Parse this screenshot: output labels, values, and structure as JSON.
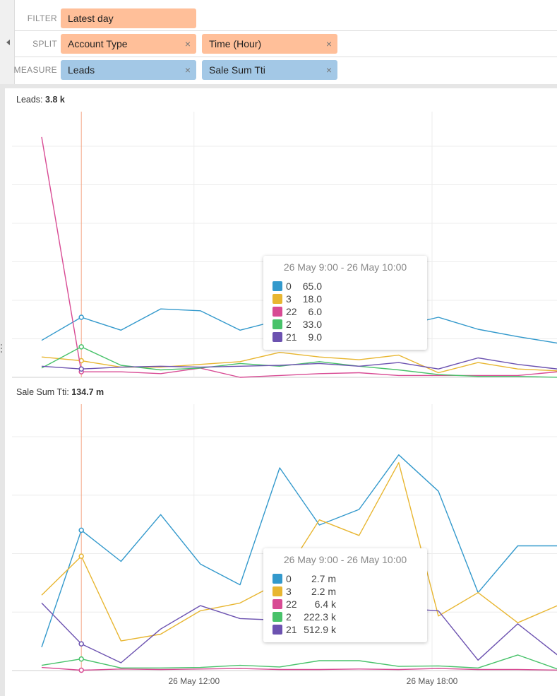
{
  "filter_bar": {
    "rows": [
      {
        "label": "FILTER",
        "tiles": [
          {
            "text": "Latest day",
            "removable": false
          }
        ]
      },
      {
        "label": "SPLIT",
        "tiles": [
          {
            "text": "Account Type",
            "removable": true
          },
          {
            "text": "Time (Hour)",
            "removable": true
          }
        ]
      },
      {
        "label": "MEASURE",
        "tiles": [
          {
            "text": "Leads",
            "removable": true
          },
          {
            "text": "Sale Sum Tti",
            "removable": true
          }
        ]
      }
    ],
    "remove_glyph": "×",
    "colors": {
      "split_tile": "#ffbf99",
      "measure_tile": "#a3c8e6"
    }
  },
  "colors": {
    "0": "#3399cc",
    "3": "#e8b631",
    "22": "#d84b94",
    "2": "#48c26a",
    "21": "#6c52b0",
    "hover_line": "#f5a888"
  },
  "charts": [
    {
      "title_label": "Leads:",
      "title_value": "3.8 k",
      "tooltip": {
        "title": "26 May 9:00 - 26 May 10:00",
        "rows": [
          {
            "segment": "0",
            "value": "65.0"
          },
          {
            "segment": "3",
            "value": "18.0"
          },
          {
            "segment": "22",
            "value": "6.0"
          },
          {
            "segment": "2",
            "value": "33.0"
          },
          {
            "segment": "21",
            "value": "9.0"
          }
        ]
      }
    },
    {
      "title_label": "Sale Sum Tti:",
      "title_value": "134.7 m",
      "tooltip": {
        "title": "26 May 9:00 - 26 May 10:00",
        "rows": [
          {
            "segment": "0",
            "value": "2.7 m"
          },
          {
            "segment": "3",
            "value": "2.2 m"
          },
          {
            "segment": "22",
            "value": "6.4 k"
          },
          {
            "segment": "2",
            "value": "222.3 k"
          },
          {
            "segment": "21",
            "value": "512.9 k"
          }
        ]
      }
    }
  ],
  "x_axis": {
    "ticks": [
      "26 May 12:00",
      "26 May 18:00"
    ]
  },
  "chart_data": [
    {
      "type": "line",
      "title": "Leads: 3.8 k",
      "x": [
        "8:00",
        "9:00",
        "10:00",
        "11:00",
        "12:00",
        "13:00",
        "14:00",
        "15:00",
        "16:00",
        "17:00",
        "18:00",
        "19:00",
        "20:00",
        "21:00",
        "22:00"
      ],
      "ylim": [
        0,
        250
      ],
      "grid": true,
      "hover_x": "9:00",
      "series": [
        {
          "name": "0",
          "values": [
            40,
            65,
            51,
            74,
            72,
            51,
            62,
            72,
            63,
            55,
            65,
            52,
            44,
            37,
            null
          ]
        },
        {
          "name": "3",
          "values": [
            22,
            18,
            11,
            11,
            14,
            17,
            27,
            22,
            19,
            24,
            5,
            16,
            9,
            7,
            null
          ]
        },
        {
          "name": "22",
          "values": [
            260,
            6,
            6,
            4,
            10,
            0,
            2,
            4,
            5,
            2,
            2,
            2,
            2,
            6,
            null
          ]
        },
        {
          "name": "2",
          "values": [
            10,
            33,
            13,
            8,
            10,
            15,
            12,
            17,
            12,
            8,
            3,
            1,
            1,
            0,
            null
          ]
        },
        {
          "name": "21",
          "values": [
            12,
            9,
            11,
            12,
            11,
            12,
            13,
            15,
            12,
            16,
            9,
            21,
            14,
            9,
            null
          ]
        }
      ]
    },
    {
      "type": "line",
      "title": "Sale Sum Tti: 134.7 m",
      "x": [
        "8:00",
        "9:00",
        "10:00",
        "11:00",
        "12:00",
        "13:00",
        "14:00",
        "15:00",
        "16:00",
        "17:00",
        "18:00",
        "19:00",
        "20:00",
        "21:00",
        "22:00"
      ],
      "ylim": [
        0,
        4.5
      ],
      "grid": true,
      "hover_x": "9:00",
      "series": [
        {
          "name": "0",
          "values": [
            0.45,
            2.7,
            2.1,
            3.0,
            2.05,
            1.65,
            3.9,
            2.8,
            3.1,
            4.15,
            3.45,
            1.5,
            2.4,
            2.4,
            null
          ]
        },
        {
          "name": "3",
          "values": [
            1.45,
            2.2,
            0.57,
            0.7,
            1.15,
            1.3,
            1.7,
            2.9,
            2.6,
            4.0,
            1.05,
            1.5,
            0.92,
            1.25,
            null
          ]
        },
        {
          "name": "22",
          "values": [
            0.06,
            0.0064,
            0.03,
            0.02,
            0.03,
            0.04,
            0.02,
            0.02,
            0.03,
            0.02,
            0.04,
            0.02,
            0.02,
            0.01,
            null
          ]
        },
        {
          "name": "2",
          "values": [
            0.1,
            0.2223,
            0.05,
            0.05,
            0.06,
            0.1,
            0.07,
            0.19,
            0.19,
            0.08,
            0.09,
            0.05,
            0.3,
            0.03,
            null
          ]
        },
        {
          "name": "21",
          "values": [
            1.3,
            0.5129,
            0.15,
            0.8,
            1.25,
            1.0,
            0.97,
            1.05,
            1.2,
            1.2,
            1.15,
            0.2,
            0.9,
            0.3,
            null
          ]
        }
      ]
    }
  ]
}
